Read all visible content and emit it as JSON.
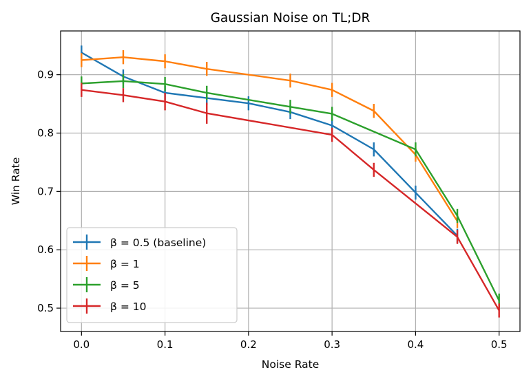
{
  "chart_data": {
    "type": "line",
    "title": "Gaussian Noise on TL;DR",
    "xlabel": "Noise Rate",
    "ylabel": "Win Rate",
    "xlim": [
      -0.025,
      0.525
    ],
    "ylim": [
      0.46,
      0.975
    ],
    "xticks": [
      0.0,
      0.1,
      0.2,
      0.3,
      0.4,
      0.5
    ],
    "xtick_labels": [
      "0.0",
      "0.1",
      "0.2",
      "0.3",
      "0.4",
      "0.5"
    ],
    "yticks": [
      0.5,
      0.6,
      0.7,
      0.8,
      0.9
    ],
    "ytick_labels": [
      "0.5",
      "0.6",
      "0.7",
      "0.8",
      "0.9"
    ],
    "grid": true,
    "legend_position": "lower-left",
    "error_bars": true,
    "series": [
      {
        "name": "β = 0.5 (baseline)",
        "color": "#1f77b4",
        "points": [
          {
            "x": 0.0,
            "y": 0.938,
            "err": 0.012
          },
          {
            "x": 0.05,
            "y": 0.897,
            "err": 0.012
          },
          {
            "x": 0.1,
            "y": 0.869,
            "err": 0.012
          },
          {
            "x": 0.15,
            "y": 0.86,
            "err": 0.012
          },
          {
            "x": 0.2,
            "y": 0.851,
            "err": 0.012
          },
          {
            "x": 0.25,
            "y": 0.836,
            "err": 0.012
          },
          {
            "x": 0.3,
            "y": 0.813,
            "err": 0.012
          },
          {
            "x": 0.35,
            "y": 0.772,
            "err": 0.012
          },
          {
            "x": 0.4,
            "y": 0.698,
            "err": 0.012
          },
          {
            "x": 0.45,
            "y": 0.624,
            "err": 0.012
          }
        ]
      },
      {
        "name": "β = 1",
        "color": "#ff7f0e",
        "points": [
          {
            "x": 0.0,
            "y": 0.925,
            "err": 0.012
          },
          {
            "x": 0.05,
            "y": 0.93,
            "err": 0.012
          },
          {
            "x": 0.1,
            "y": 0.923,
            "err": 0.012
          },
          {
            "x": 0.15,
            "y": 0.91,
            "err": 0.012
          },
          {
            "x": 0.25,
            "y": 0.89,
            "err": 0.012
          },
          {
            "x": 0.3,
            "y": 0.874,
            "err": 0.012
          },
          {
            "x": 0.35,
            "y": 0.838,
            "err": 0.012
          },
          {
            "x": 0.4,
            "y": 0.763,
            "err": 0.012
          },
          {
            "x": 0.45,
            "y": 0.649,
            "err": 0.012
          }
        ]
      },
      {
        "name": "β = 5",
        "color": "#2ca02c",
        "points": [
          {
            "x": 0.0,
            "y": 0.885,
            "err": 0.012
          },
          {
            "x": 0.05,
            "y": 0.889,
            "err": 0.012
          },
          {
            "x": 0.1,
            "y": 0.884,
            "err": 0.012
          },
          {
            "x": 0.15,
            "y": 0.869,
            "err": 0.012
          },
          {
            "x": 0.25,
            "y": 0.845,
            "err": 0.012
          },
          {
            "x": 0.3,
            "y": 0.833,
            "err": 0.012
          },
          {
            "x": 0.4,
            "y": 0.772,
            "err": 0.012
          },
          {
            "x": 0.45,
            "y": 0.658,
            "err": 0.012
          },
          {
            "x": 0.5,
            "y": 0.513,
            "err": 0.012
          }
        ]
      },
      {
        "name": "β = 10",
        "color": "#d62728",
        "points": [
          {
            "x": 0.0,
            "y": 0.874,
            "err": 0.012
          },
          {
            "x": 0.05,
            "y": 0.865,
            "err": 0.012
          },
          {
            "x": 0.1,
            "y": 0.854,
            "err": 0.015
          },
          {
            "x": 0.15,
            "y": 0.834,
            "err": 0.018
          },
          {
            "x": 0.3,
            "y": 0.797,
            "err": 0.012
          },
          {
            "x": 0.35,
            "y": 0.737,
            "err": 0.012
          },
          {
            "x": 0.45,
            "y": 0.622,
            "err": 0.012
          },
          {
            "x": 0.5,
            "y": 0.496,
            "err": 0.012
          }
        ]
      }
    ]
  }
}
